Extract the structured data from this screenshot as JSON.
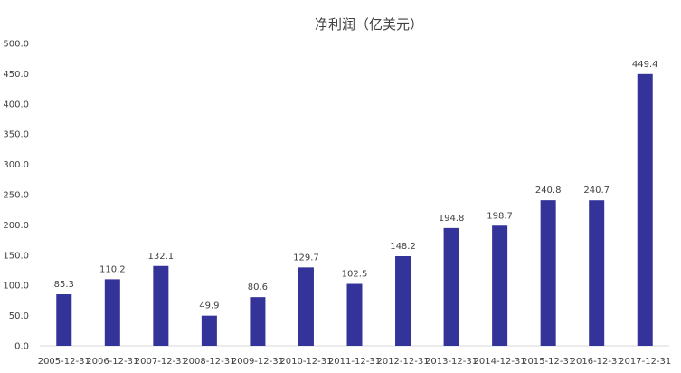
{
  "chart_data": {
    "type": "bar",
    "title": "净利润（亿美元）",
    "xlabel": "",
    "ylabel": "",
    "categories": [
      "2005-12-31",
      "2006-12-31",
      "2007-12-31",
      "2008-12-31",
      "2009-12-31",
      "2010-12-31",
      "2011-12-31",
      "2012-12-31",
      "2013-12-31",
      "2014-12-31",
      "2015-12-31",
      "2016-12-31",
      "2017-12-31"
    ],
    "values": [
      85.3,
      110.2,
      132.1,
      49.9,
      80.6,
      129.7,
      102.5,
      148.2,
      194.8,
      198.7,
      240.8,
      240.7,
      449.4
    ],
    "value_labels": [
      "85.3",
      "110.2",
      "132.1",
      "49.9",
      "80.6",
      "129.7",
      "102.5",
      "148.2",
      "194.8",
      "198.7",
      "240.8",
      "240.7",
      "449.4"
    ],
    "ylim": [
      0,
      500
    ],
    "yticks": [
      "0.0",
      "50.0",
      "100.0",
      "150.0",
      "200.0",
      "250.0",
      "300.0",
      "350.0",
      "400.0",
      "450.0",
      "500.0"
    ],
    "bar_color": "#333399",
    "grid": false,
    "legend": "none"
  }
}
